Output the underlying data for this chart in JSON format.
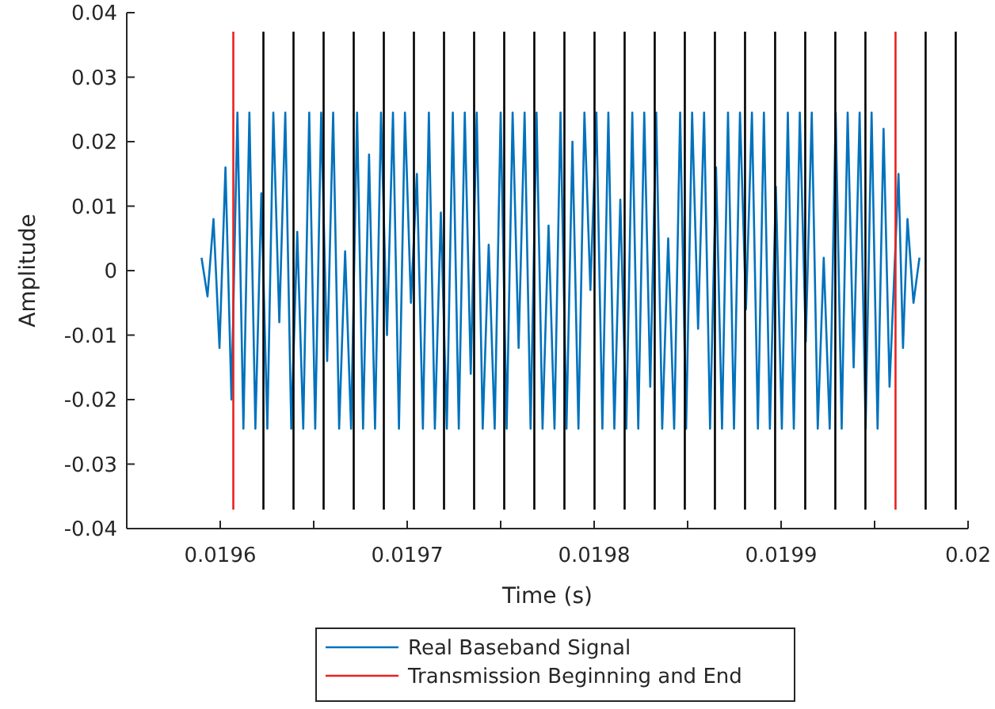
{
  "chart_data": {
    "type": "line",
    "xlabel": "Time (s)",
    "ylabel": "Amplitude",
    "xlim": [
      0.01955,
      0.02
    ],
    "xticks": [
      0.0196,
      {
        "value": 0.01965,
        "label": null
      },
      0.0197,
      {
        "value": 0.01975,
        "label": null
      },
      0.0198,
      {
        "value": 0.01985,
        "label": null
      },
      0.0199,
      {
        "value": 0.01995,
        "label": null
      },
      0.02
    ],
    "ylim": [
      -0.04,
      0.04
    ],
    "yticks": [
      -0.04,
      -0.03,
      -0.02,
      -0.01,
      0,
      0.01,
      0.02,
      0.03,
      0.04
    ],
    "grid": false,
    "legend": "bottom",
    "marker": "none",
    "line_style": "solid",
    "series": [
      {
        "name": "Real Baseband Signal",
        "color": "#0072bd",
        "x": [
          0.01959,
          0.0195932,
          0.0195964,
          0.0195996,
          0.0196028,
          0.019606,
          0.0196092,
          0.0196124,
          0.0196156,
          0.0196188,
          0.019622,
          0.0196252,
          0.0196284,
          0.0196316,
          0.0196348,
          0.019638,
          0.0196412,
          0.0196444,
          0.0196476,
          0.0196508,
          0.019654,
          0.0196572,
          0.0196604,
          0.0196636,
          0.0196668,
          0.01967,
          0.0196732,
          0.0196764,
          0.0196796,
          0.0196828,
          0.019686,
          0.0196892,
          0.0196924,
          0.0196956,
          0.0196988,
          0.019702,
          0.0197052,
          0.0197084,
          0.0197116,
          0.0197148,
          0.019718,
          0.0197212,
          0.0197244,
          0.0197276,
          0.0197308,
          0.019734,
          0.0197372,
          0.0197404,
          0.0197436,
          0.0197468,
          0.01975,
          0.0197532,
          0.0197564,
          0.0197596,
          0.0197628,
          0.019766,
          0.0197692,
          0.0197724,
          0.0197756,
          0.0197788,
          0.019782,
          0.0197852,
          0.0197884,
          0.0197916,
          0.0197948,
          0.019798,
          0.0198012,
          0.0198044,
          0.0198076,
          0.0198108,
          0.019814,
          0.0198172,
          0.0198204,
          0.0198236,
          0.0198268,
          0.01983,
          0.0198332,
          0.0198364,
          0.0198396,
          0.0198428,
          0.019846,
          0.0198492,
          0.0198524,
          0.0198556,
          0.0198588,
          0.019862,
          0.0198652,
          0.0198684,
          0.0198716,
          0.0198748,
          0.019878,
          0.0198812,
          0.0198844,
          0.0198876,
          0.0198908,
          0.019894,
          0.0198972,
          0.0199004,
          0.0199036,
          0.0199068,
          0.01991,
          0.0199132,
          0.0199164,
          0.0199196,
          0.0199228,
          0.019926,
          0.0199292,
          0.0199324,
          0.0199356,
          0.0199388,
          0.019942,
          0.0199452,
          0.0199484,
          0.0199516,
          0.0199548,
          0.019958,
          0.0199628,
          0.0199652,
          0.0199676,
          0.0199708,
          0.019974
        ],
        "values": [
          0.002,
          -0.004,
          0.008,
          -0.012,
          0.016,
          -0.02,
          0.0245,
          -0.0245,
          0.0245,
          -0.0245,
          0.012,
          -0.0245,
          0.0245,
          -0.008,
          0.0245,
          -0.0245,
          0.006,
          -0.0245,
          0.0245,
          -0.0245,
          0.0245,
          -0.014,
          0.0245,
          -0.0245,
          0.003,
          -0.0245,
          0.0245,
          -0.0245,
          0.018,
          -0.0245,
          0.0245,
          -0.01,
          0.0245,
          -0.0245,
          0.0245,
          -0.005,
          0.015,
          -0.0245,
          0.0245,
          -0.0245,
          0.009,
          -0.0245,
          0.0245,
          -0.0245,
          0.0245,
          -0.016,
          0.0245,
          -0.0245,
          0.004,
          -0.0245,
          0.0245,
          -0.0245,
          0.0245,
          -0.012,
          0.0245,
          -0.0245,
          0.0245,
          -0.0245,
          0.007,
          -0.0245,
          0.0245,
          -0.0245,
          0.02,
          -0.0245,
          0.0245,
          -0.003,
          0.0245,
          -0.0245,
          0.0245,
          -0.0245,
          0.011,
          -0.0245,
          0.0245,
          -0.0245,
          0.0245,
          -0.018,
          0.0245,
          -0.0245,
          0.005,
          -0.0245,
          0.0245,
          -0.0245,
          0.0245,
          -0.009,
          0.0245,
          -0.0245,
          0.016,
          -0.0245,
          0.0245,
          -0.0245,
          0.0245,
          -0.006,
          0.0245,
          -0.0245,
          0.0245,
          -0.0245,
          0.013,
          -0.0245,
          0.0245,
          -0.0245,
          0.0245,
          -0.011,
          0.0245,
          -0.0245,
          0.002,
          -0.0245,
          0.0245,
          -0.0245,
          0.0245,
          -0.015,
          0.0245,
          -0.0245,
          0.0245,
          -0.0245,
          0.022,
          -0.018,
          0.015,
          -0.012,
          0.008,
          -0.005,
          0.002
        ]
      }
    ],
    "ref_lines": [
      {
        "axis": "x",
        "value": 0.019607,
        "label": "Transmission Beginning and End",
        "color": "#e8231f"
      },
      {
        "axis": "x",
        "value": 0.0199612,
        "color": "#e8231f"
      },
      {
        "axis": "x",
        "value": 0.0196231,
        "color": "#000000"
      },
      {
        "axis": "x",
        "value": 0.0196392,
        "color": "#000000"
      },
      {
        "axis": "x",
        "value": 0.0196553,
        "color": "#000000"
      },
      {
        "axis": "x",
        "value": 0.0196714,
        "color": "#000000"
      },
      {
        "axis": "x",
        "value": 0.0196875,
        "color": "#000000"
      },
      {
        "axis": "x",
        "value": 0.0197036,
        "color": "#000000"
      },
      {
        "axis": "x",
        "value": 0.0197197,
        "color": "#000000"
      },
      {
        "axis": "x",
        "value": 0.0197358,
        "color": "#000000"
      },
      {
        "axis": "x",
        "value": 0.0197519,
        "color": "#000000"
      },
      {
        "axis": "x",
        "value": 0.019768,
        "color": "#000000"
      },
      {
        "axis": "x",
        "value": 0.0197841,
        "color": "#000000"
      },
      {
        "axis": "x",
        "value": 0.0198002,
        "color": "#000000"
      },
      {
        "axis": "x",
        "value": 0.0198163,
        "color": "#000000"
      },
      {
        "axis": "x",
        "value": 0.0198324,
        "color": "#000000"
      },
      {
        "axis": "x",
        "value": 0.0198485,
        "color": "#000000"
      },
      {
        "axis": "x",
        "value": 0.0198646,
        "color": "#000000"
      },
      {
        "axis": "x",
        "value": 0.0198807,
        "color": "#000000"
      },
      {
        "axis": "x",
        "value": 0.0198968,
        "color": "#000000"
      },
      {
        "axis": "x",
        "value": 0.0199129,
        "color": "#000000"
      },
      {
        "axis": "x",
        "value": 0.019929,
        "color": "#000000"
      },
      {
        "axis": "x",
        "value": 0.0199451,
        "color": "#000000"
      },
      {
        "axis": "x",
        "value": 0.0199773,
        "color": "#000000"
      },
      {
        "axis": "x",
        "value": 0.0199934,
        "color": "#000000"
      }
    ]
  }
}
